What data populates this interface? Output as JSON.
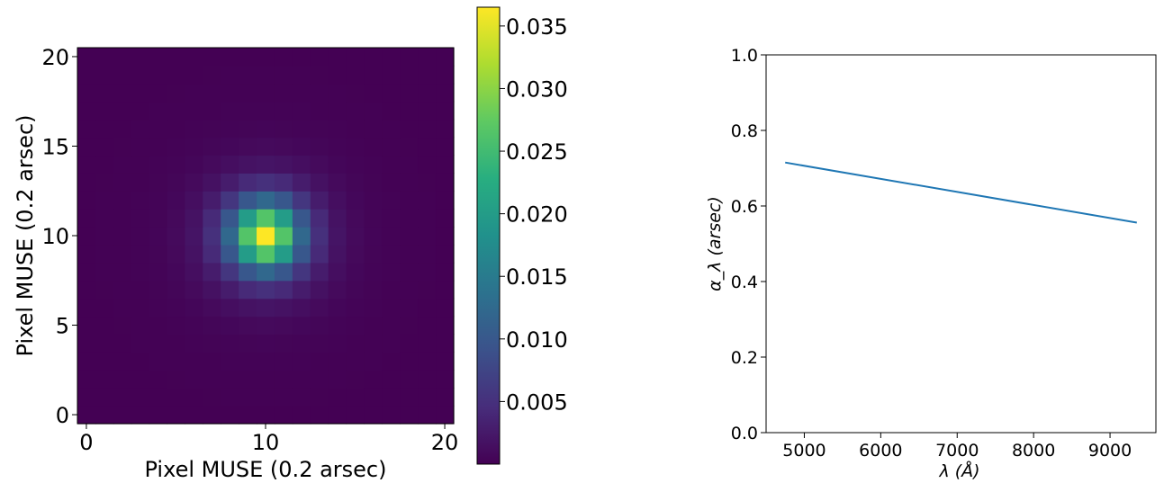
{
  "chart_data": [
    {
      "type": "heatmap",
      "title": "",
      "xlabel": "Pixel MUSE  (0.2 arsec)",
      "ylabel": "Pixel MUSE (0.2 arsec)",
      "grid_size": 21,
      "x_ticks": [
        "0",
        "10",
        "20"
      ],
      "y_ticks": [
        "0",
        "5",
        "10",
        "15",
        "20"
      ],
      "xlim": [
        -0.5,
        20.5
      ],
      "ylim": [
        -0.5,
        20.5
      ],
      "peak_center": [
        10,
        10
      ],
      "peak_value": 0.0365,
      "colormap": "viridis",
      "colorbar": {
        "range": [
          0.0,
          0.0365
        ],
        "ticks": [
          "0.005",
          "0.010",
          "0.015",
          "0.020",
          "0.025",
          "0.030",
          "0.035"
        ],
        "tick_values": [
          0.005,
          0.01,
          0.015,
          0.02,
          0.025,
          0.03,
          0.035
        ]
      },
      "grid": false
    },
    {
      "type": "line",
      "title": "",
      "xlabel": "λ (Å)",
      "ylabel": "α_λ (arsec)",
      "xlim": [
        4500,
        9600
      ],
      "ylim": [
        0.0,
        1.0
      ],
      "x_ticks": [
        "5000",
        "6000",
        "7000",
        "8000",
        "9000"
      ],
      "x_tick_values": [
        5000,
        6000,
        7000,
        8000,
        9000
      ],
      "y_ticks": [
        "0.0",
        "0.2",
        "0.4",
        "0.6",
        "0.8",
        "1.0"
      ],
      "y_tick_values": [
        0.0,
        0.2,
        0.4,
        0.6,
        0.8,
        1.0
      ],
      "series": [
        {
          "x": [
            4750,
            9350
          ],
          "y": [
            0.715,
            0.556
          ],
          "color": "#1f77b4"
        }
      ],
      "grid": false
    }
  ]
}
